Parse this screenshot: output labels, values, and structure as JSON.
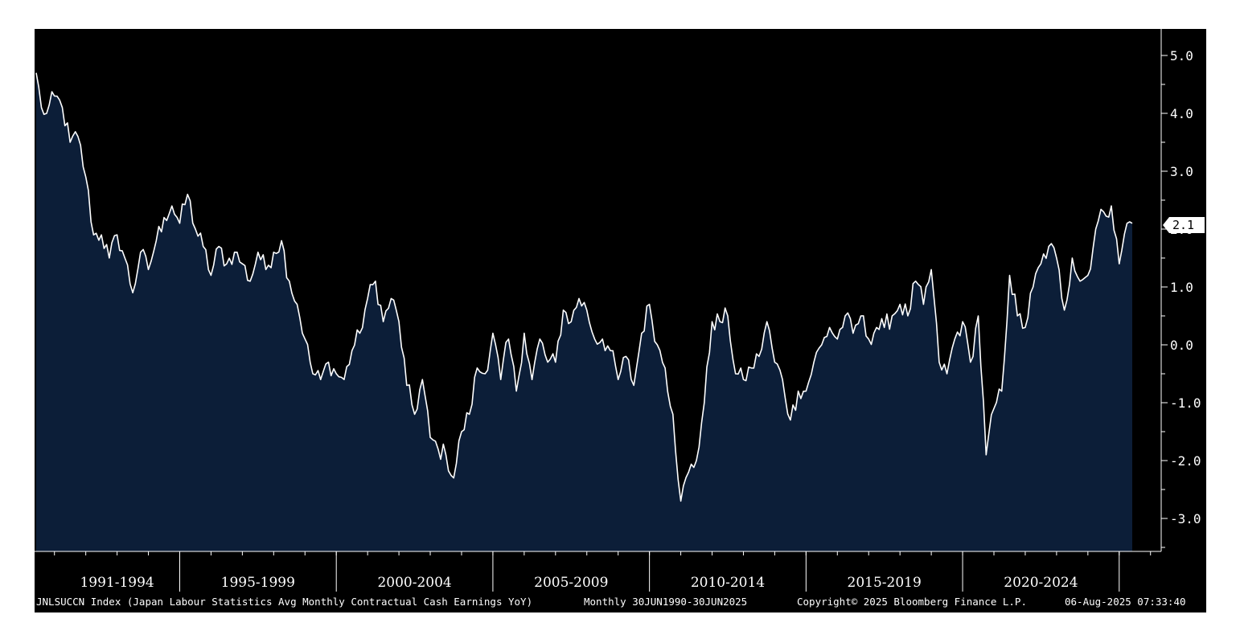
{
  "chart_data": {
    "type": "area",
    "x_start": "1990-06",
    "x_end": "2025-06",
    "frequency": "Monthly",
    "yticks": [
      "5.0",
      "4.0",
      "3.0",
      "2.0",
      "1.0",
      "0.0",
      "-1.0",
      "-2.0",
      "-3.0"
    ],
    "ylim": [
      -3.6,
      5.4
    ],
    "xticks": [
      "1991-1994",
      "1995-1999",
      "2000-2004",
      "2005-2009",
      "2010-2014",
      "2015-2019",
      "2020-2024"
    ],
    "last_value_label": "2.1",
    "grid": false,
    "colors": {
      "background": "#000000",
      "area_fill": "#0c1e38",
      "line": "#ffffff",
      "footer_bg": "#000000"
    },
    "anchors": [
      [
        "1990-06",
        4.7
      ],
      [
        "1990-08",
        4.1
      ],
      [
        "1990-10",
        4.0
      ],
      [
        "1991-01",
        4.3
      ],
      [
        "1991-04",
        4.1
      ],
      [
        "1991-07",
        3.5
      ],
      [
        "1991-10",
        3.6
      ],
      [
        "1992-01",
        2.9
      ],
      [
        "1992-04",
        1.9
      ],
      [
        "1992-07",
        1.9
      ],
      [
        "1992-10",
        1.5
      ],
      [
        "1993-01",
        1.9
      ],
      [
        "1993-04",
        1.5
      ],
      [
        "1993-07",
        0.9
      ],
      [
        "1993-10",
        1.6
      ],
      [
        "1994-01",
        1.3
      ],
      [
        "1994-04",
        1.8
      ],
      [
        "1994-07",
        2.2
      ],
      [
        "1994-10",
        2.4
      ],
      [
        "1995-01",
        2.1
      ],
      [
        "1995-04",
        2.6
      ],
      [
        "1995-07",
        2.0
      ],
      [
        "1995-10",
        1.7
      ],
      [
        "1996-01",
        1.2
      ],
      [
        "1996-04",
        1.7
      ],
      [
        "1996-07",
        1.4
      ],
      [
        "1996-10",
        1.6
      ],
      [
        "1997-01",
        1.4
      ],
      [
        "1997-04",
        1.1
      ],
      [
        "1997-07",
        1.6
      ],
      [
        "1997-10",
        1.3
      ],
      [
        "1998-01",
        1.6
      ],
      [
        "1998-04",
        1.8
      ],
      [
        "1998-07",
        1.1
      ],
      [
        "1998-10",
        0.7
      ],
      [
        "1999-01",
        0.1
      ],
      [
        "1999-04",
        -0.5
      ],
      [
        "1999-07",
        -0.6
      ],
      [
        "1999-10",
        -0.3
      ],
      [
        "2000-01",
        -0.5
      ],
      [
        "2000-04",
        -0.6
      ],
      [
        "2000-07",
        -0.1
      ],
      [
        "2000-10",
        0.2
      ],
      [
        "2001-01",
        0.8
      ],
      [
        "2001-04",
        1.1
      ],
      [
        "2001-07",
        0.4
      ],
      [
        "2001-10",
        0.8
      ],
      [
        "2002-01",
        0.4
      ],
      [
        "2002-04",
        -0.7
      ],
      [
        "2002-07",
        -1.2
      ],
      [
        "2002-10",
        -0.6
      ],
      [
        "2003-01",
        -1.6
      ],
      [
        "2003-04",
        -1.8
      ],
      [
        "2003-07",
        -1.9
      ],
      [
        "2003-10",
        -2.3
      ],
      [
        "2004-01",
        -1.5
      ],
      [
        "2004-04",
        -1.2
      ],
      [
        "2004-07",
        -0.4
      ],
      [
        "2004-10",
        -0.5
      ],
      [
        "2005-01",
        0.2
      ],
      [
        "2005-04",
        -0.6
      ],
      [
        "2005-07",
        0.1
      ],
      [
        "2005-10",
        -0.8
      ],
      [
        "2006-01",
        0.2
      ],
      [
        "2006-04",
        -0.6
      ],
      [
        "2006-07",
        0.1
      ],
      [
        "2006-10",
        -0.3
      ],
      [
        "2007-01",
        -0.3
      ],
      [
        "2007-04",
        0.6
      ],
      [
        "2007-07",
        0.4
      ],
      [
        "2007-10",
        0.8
      ],
      [
        "2008-01",
        0.6
      ],
      [
        "2008-04",
        0.1
      ],
      [
        "2008-07",
        0.1
      ],
      [
        "2008-10",
        -0.1
      ],
      [
        "2009-01",
        -0.6
      ],
      [
        "2009-04",
        -0.2
      ],
      [
        "2009-07",
        -0.7
      ],
      [
        "2009-10",
        0.2
      ],
      [
        "2010-01",
        0.7
      ],
      [
        "2010-04",
        0.0
      ],
      [
        "2010-07",
        -0.4
      ],
      [
        "2010-10",
        -1.2
      ],
      [
        "2011-01",
        -2.7
      ],
      [
        "2011-04",
        -2.2
      ],
      [
        "2011-07",
        -2.0
      ],
      [
        "2011-10",
        -1.0
      ],
      [
        "2012-01",
        0.4
      ],
      [
        "2012-04",
        0.4
      ],
      [
        "2012-07",
        0.5
      ],
      [
        "2012-10",
        -0.5
      ],
      [
        "2013-01",
        -0.6
      ],
      [
        "2013-04",
        -0.4
      ],
      [
        "2013-07",
        -0.2
      ],
      [
        "2013-10",
        0.4
      ],
      [
        "2014-01",
        -0.3
      ],
      [
        "2014-04",
        -0.6
      ],
      [
        "2014-07",
        -1.3
      ],
      [
        "2014-10",
        -0.8
      ],
      [
        "2015-01",
        -0.8
      ],
      [
        "2015-04",
        -0.3
      ],
      [
        "2015-07",
        0.0
      ],
      [
        "2015-10",
        0.3
      ],
      [
        "2016-01",
        0.1
      ],
      [
        "2016-04",
        0.5
      ],
      [
        "2016-07",
        0.2
      ],
      [
        "2016-10",
        0.5
      ],
      [
        "2017-01",
        0.1
      ],
      [
        "2017-04",
        0.3
      ],
      [
        "2017-07",
        0.3
      ],
      [
        "2017-10",
        0.5
      ],
      [
        "2018-01",
        0.7
      ],
      [
        "2018-04",
        0.5
      ],
      [
        "2018-07",
        1.1
      ],
      [
        "2018-10",
        0.7
      ],
      [
        "2019-01",
        1.3
      ],
      [
        "2019-04",
        -0.3
      ],
      [
        "2019-07",
        -0.5
      ],
      [
        "2019-10",
        0.1
      ],
      [
        "2020-01",
        0.4
      ],
      [
        "2020-04",
        -0.3
      ],
      [
        "2020-07",
        0.5
      ],
      [
        "2020-10",
        -1.9
      ],
      [
        "2021-01",
        -1.1
      ],
      [
        "2021-04",
        -0.8
      ],
      [
        "2021-07",
        1.2
      ],
      [
        "2021-10",
        0.5
      ],
      [
        "2022-01",
        0.3
      ],
      [
        "2022-04",
        1.0
      ],
      [
        "2022-07",
        1.4
      ],
      [
        "2022-10",
        1.7
      ],
      [
        "2023-01",
        1.5
      ],
      [
        "2023-04",
        0.6
      ],
      [
        "2023-07",
        1.5
      ],
      [
        "2023-10",
        1.1
      ],
      [
        "2024-01",
        1.2
      ],
      [
        "2024-04",
        2.0
      ],
      [
        "2024-07",
        2.3
      ],
      [
        "2024-10",
        2.4
      ],
      [
        "2025-01",
        1.4
      ],
      [
        "2025-04",
        2.1
      ],
      [
        "2025-06",
        2.1
      ]
    ]
  },
  "footer": {
    "description": "JNLSUCCN Index (Japan Labour Statistics Avg Monthly Contractual Cash Earnings YoY)",
    "period": "Monthly 30JUN1990-30JUN2025",
    "copyright": "Copyright© 2025 Bloomberg Finance L.P.",
    "timestamp": "06-Aug-2025 07:33:40"
  }
}
